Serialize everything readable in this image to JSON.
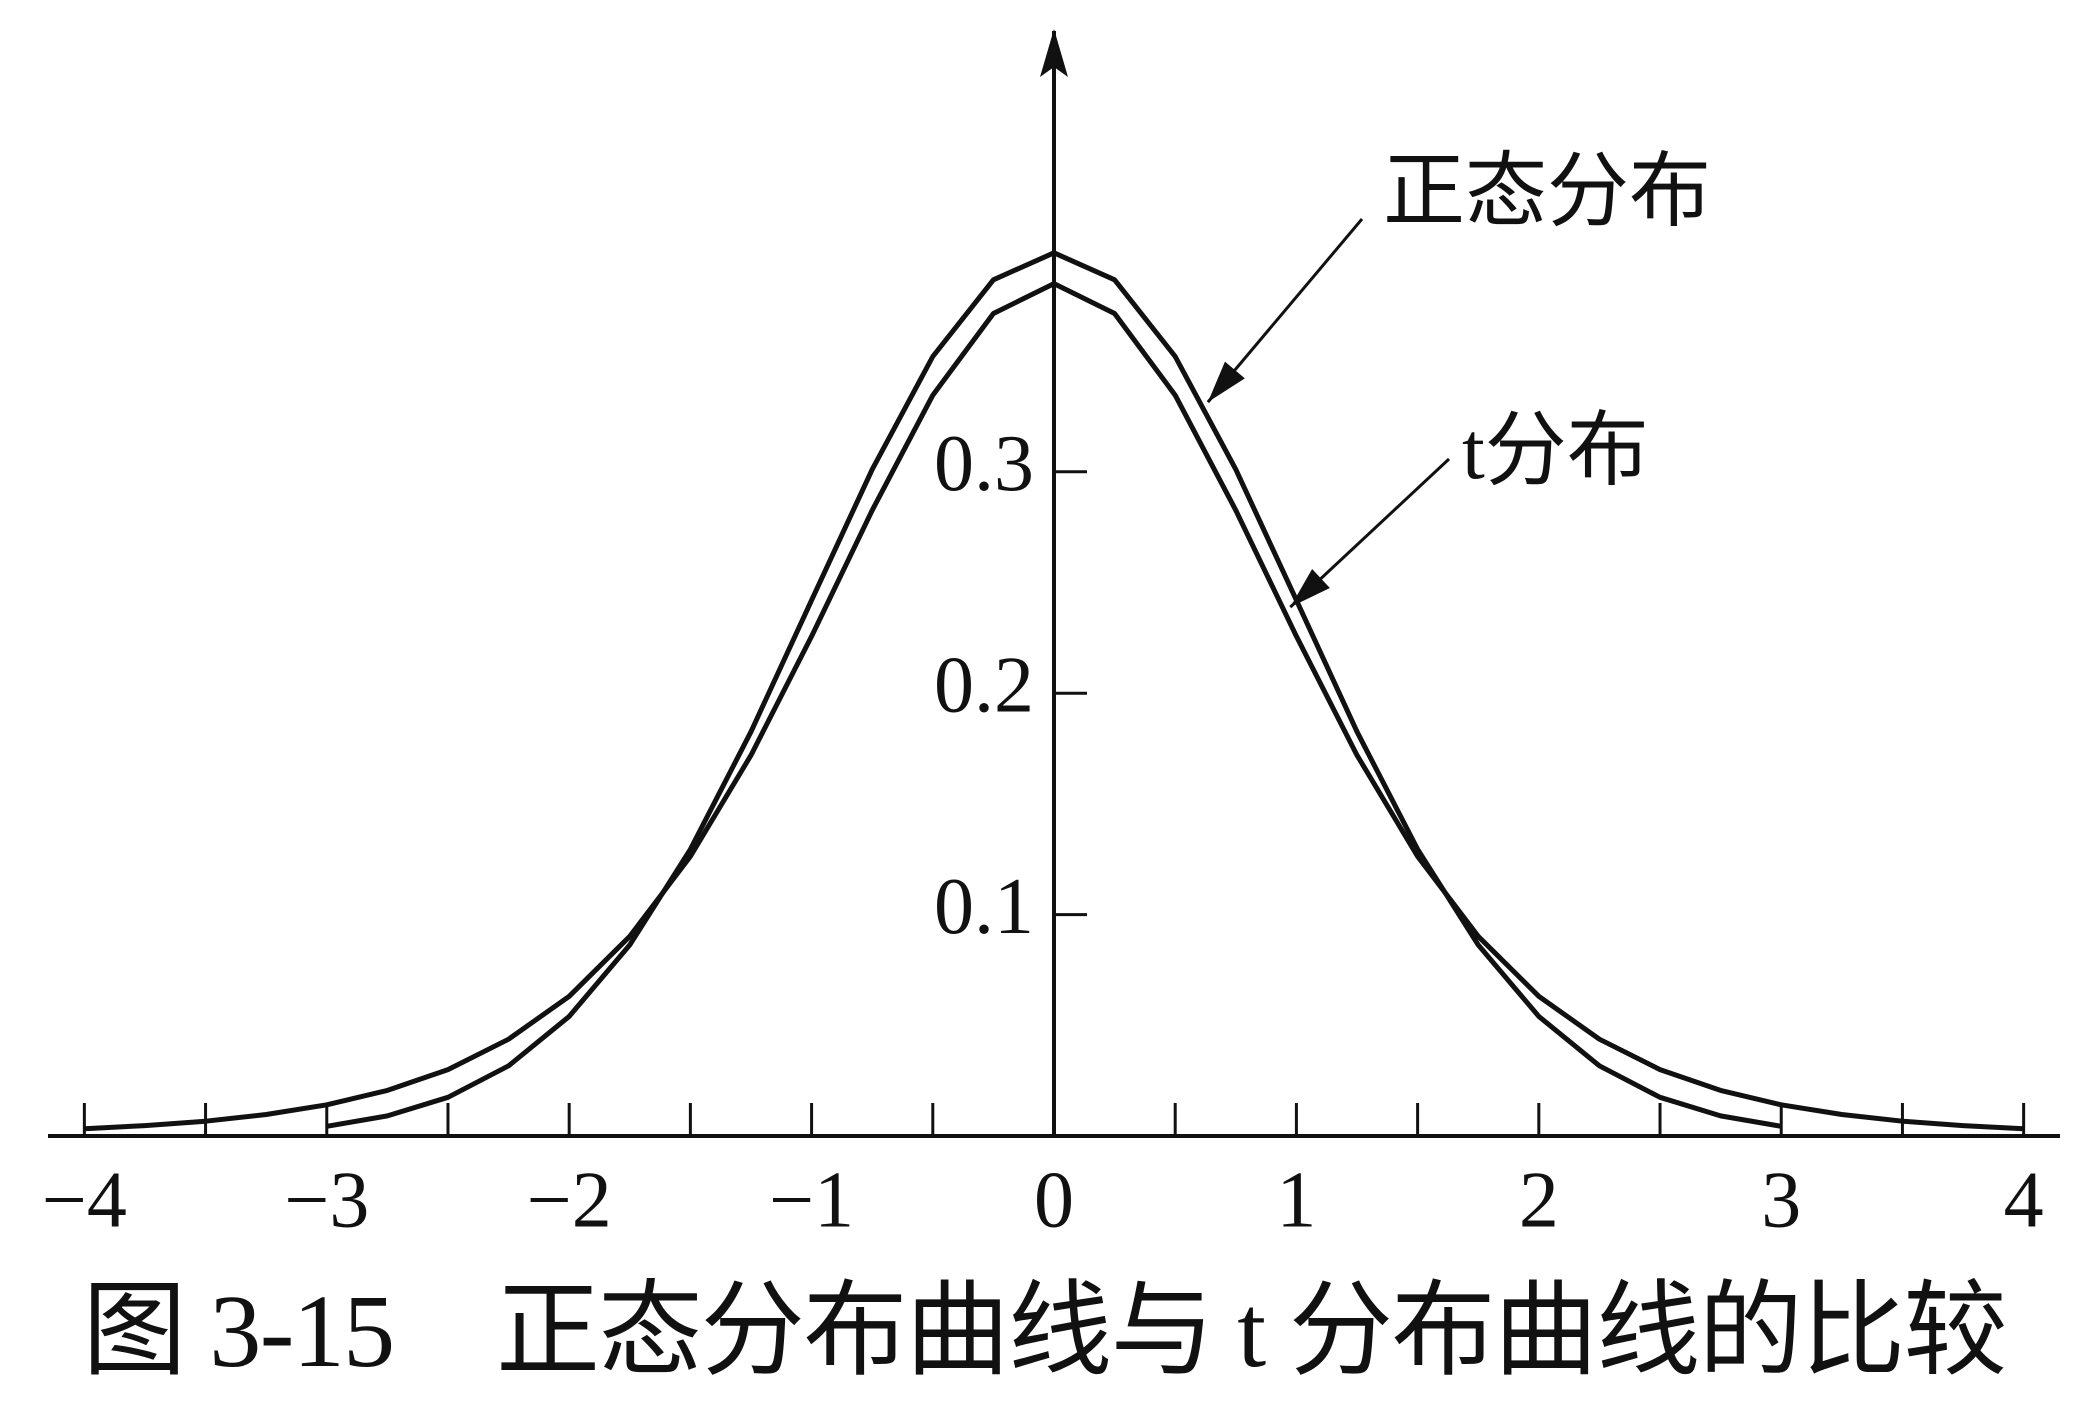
{
  "chart_data": {
    "type": "line",
    "title": "图 3-15　正态分布曲线与 t 分布曲线的比较",
    "series": [
      {
        "name": "正态分布",
        "color": "#111111",
        "x": [
          -3,
          -2.75,
          -2.5,
          -2.25,
          -2,
          -1.75,
          -1.5,
          -1.25,
          -1,
          -0.75,
          -0.5,
          -0.25,
          0,
          0.25,
          0.5,
          0.75,
          1,
          1.25,
          1.5,
          1.75,
          2,
          2.25,
          2.5,
          2.75,
          3
        ],
        "values": [
          0.0044,
          0.0091,
          0.0175,
          0.0317,
          0.054,
          0.0863,
          0.1295,
          0.1826,
          0.242,
          0.3011,
          0.3521,
          0.3867,
          0.3989,
          0.3867,
          0.3521,
          0.3011,
          0.242,
          0.1826,
          0.1295,
          0.0863,
          0.054,
          0.0317,
          0.0175,
          0.0091,
          0.0044
        ]
      },
      {
        "name": "t分布",
        "color": "#111111",
        "x": [
          -4,
          -3.75,
          -3.5,
          -3.25,
          -3,
          -2.75,
          -2.5,
          -2.25,
          -2,
          -1.75,
          -1.5,
          -1.25,
          -1,
          -0.75,
          -0.5,
          -0.25,
          0,
          0.25,
          0.5,
          0.75,
          1,
          1.25,
          1.5,
          1.75,
          2,
          2.25,
          2.5,
          2.75,
          3,
          3.25,
          3.5,
          3.75,
          4
        ],
        "values": [
          0.0033,
          0.0047,
          0.0067,
          0.0097,
          0.0141,
          0.0206,
          0.03,
          0.0437,
          0.0631,
          0.0902,
          0.1263,
          0.172,
          0.2257,
          0.2826,
          0.3346,
          0.3715,
          0.385,
          0.3715,
          0.3346,
          0.2826,
          0.2257,
          0.172,
          0.1263,
          0.0902,
          0.0631,
          0.0437,
          0.03,
          0.0206,
          0.0141,
          0.0097,
          0.0067,
          0.0047,
          0.0033
        ]
      }
    ],
    "xlim": [
      -4.15,
      4.15
    ],
    "ylim": [
      0,
      0.5
    ],
    "xticks": [
      {
        "value": -4,
        "label": "−4"
      },
      {
        "value": -3,
        "label": "−3"
      },
      {
        "value": -2,
        "label": "−2"
      },
      {
        "value": -1,
        "label": "−1"
      },
      0,
      1,
      2,
      3,
      4
    ],
    "x_minor_ticks": [
      -3.5,
      -2.5,
      -1.5,
      -0.5,
      0.5,
      1.5,
      2.5,
      3.5
    ],
    "yticks": [
      0.1,
      0.2,
      0.3
    ],
    "grid": false
  }
}
